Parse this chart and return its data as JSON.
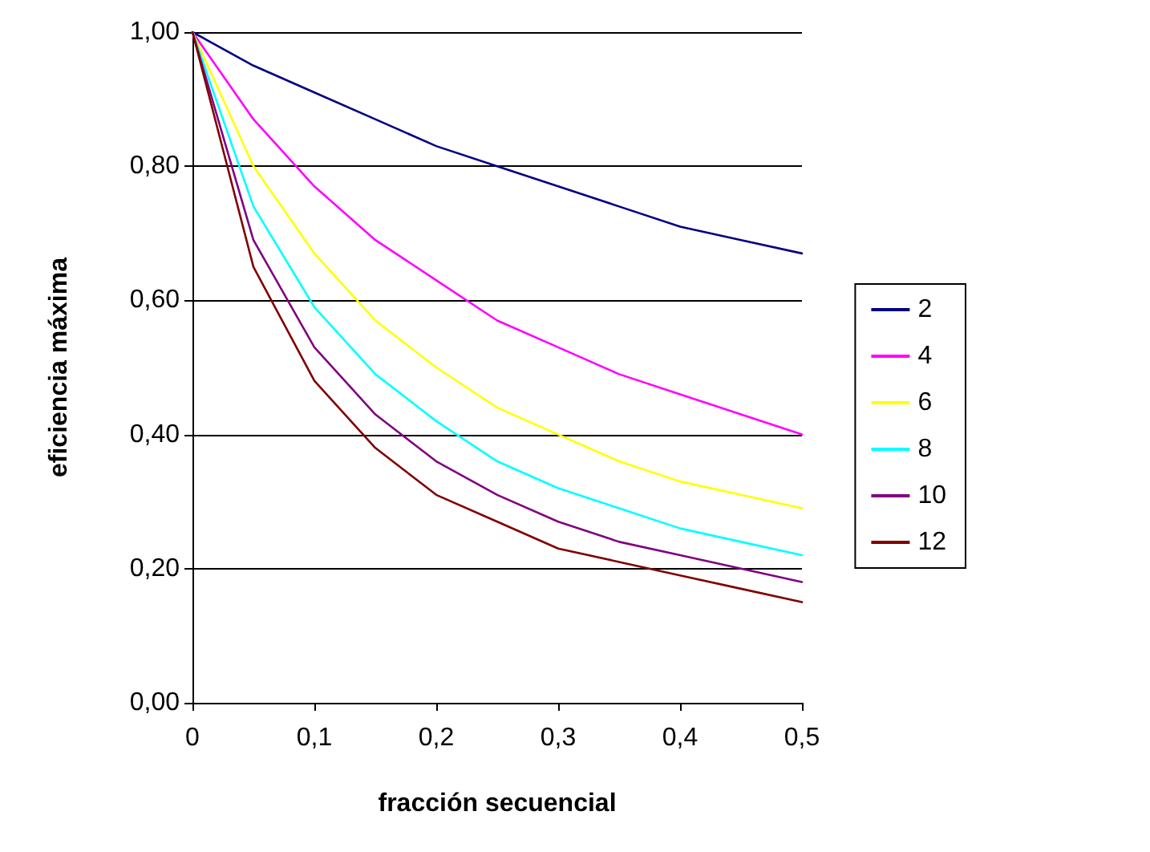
{
  "chart_data": {
    "type": "line",
    "xlabel": "fracción secuencial",
    "ylabel": "eficiencia máxima",
    "x": [
      0,
      0.05,
      0.1,
      0.15,
      0.2,
      0.25,
      0.3,
      0.35,
      0.4,
      0.45,
      0.5
    ],
    "series": [
      {
        "name": "2",
        "color": "#000080",
        "values": [
          1.0,
          0.95,
          0.91,
          0.87,
          0.83,
          0.8,
          0.77,
          0.74,
          0.71,
          0.69,
          0.67
        ]
      },
      {
        "name": "4",
        "color": "#ff00ff",
        "values": [
          1.0,
          0.87,
          0.77,
          0.69,
          0.63,
          0.57,
          0.53,
          0.49,
          0.46,
          0.43,
          0.4
        ]
      },
      {
        "name": "6",
        "color": "#ffff00",
        "values": [
          1.0,
          0.8,
          0.67,
          0.57,
          0.5,
          0.44,
          0.4,
          0.36,
          0.33,
          0.31,
          0.29
        ]
      },
      {
        "name": "8",
        "color": "#00ffff",
        "values": [
          1.0,
          0.74,
          0.59,
          0.49,
          0.42,
          0.36,
          0.32,
          0.29,
          0.26,
          0.24,
          0.22
        ]
      },
      {
        "name": "10",
        "color": "#800080",
        "values": [
          1.0,
          0.69,
          0.53,
          0.43,
          0.36,
          0.31,
          0.27,
          0.24,
          0.22,
          0.2,
          0.18
        ]
      },
      {
        "name": "12",
        "color": "#800000",
        "values": [
          1.0,
          0.65,
          0.48,
          0.38,
          0.31,
          0.27,
          0.23,
          0.21,
          0.19,
          0.17,
          0.15
        ]
      }
    ],
    "xlim": [
      0,
      0.5
    ],
    "xticks": [
      0,
      {
        "value": 0.1,
        "label": "0,1"
      },
      {
        "value": 0.2,
        "label": "0,2"
      },
      {
        "value": 0.3,
        "label": "0,3"
      },
      {
        "value": 0.4,
        "label": "0,4"
      },
      {
        "value": 0.5,
        "label": "0,5"
      }
    ],
    "ylim": [
      0,
      1
    ],
    "yticks": [
      {
        "value": 0,
        "label": "0,00"
      },
      {
        "value": 0.2,
        "label": "0,20"
      },
      {
        "value": 0.4,
        "label": "0,40"
      },
      {
        "value": 0.6,
        "label": "0,60"
      },
      {
        "value": 0.8,
        "label": "0,80"
      },
      {
        "value": 1,
        "label": "1,00"
      }
    ],
    "grid": "y",
    "legend": "right",
    "marker": "none",
    "line_style": "solid"
  }
}
